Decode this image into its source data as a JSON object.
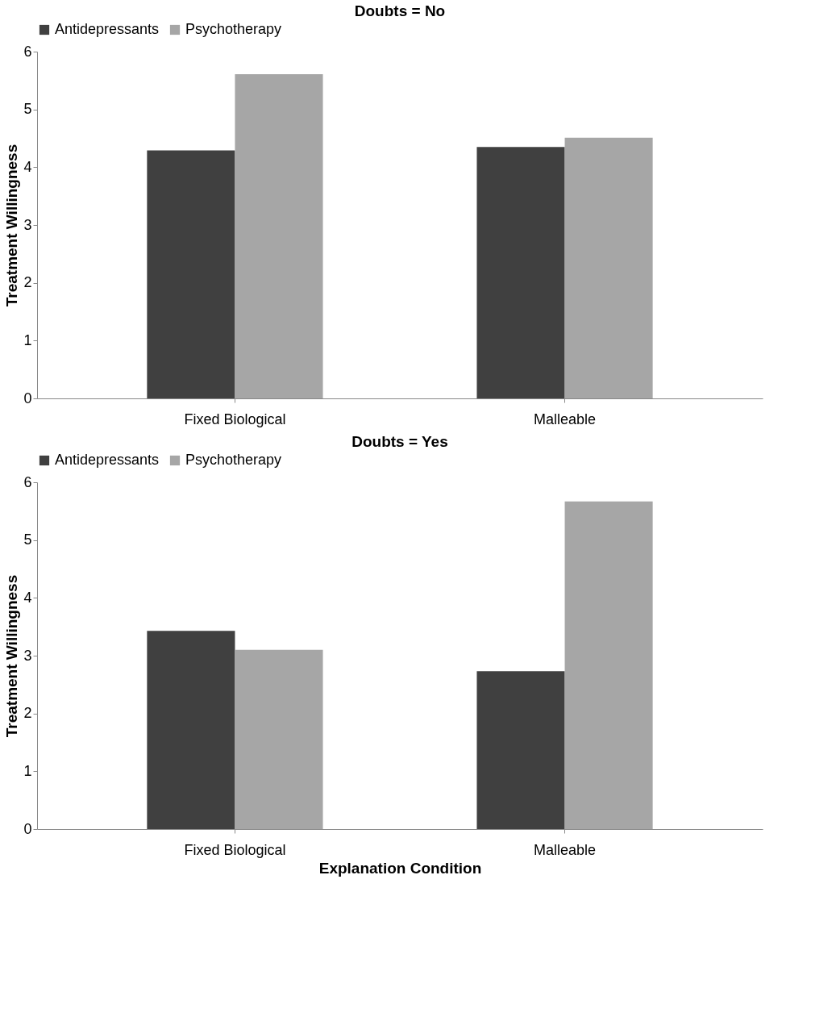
{
  "chart_data": [
    {
      "type": "bar",
      "title": "Doubts = No",
      "ylabel": "Treatment Willingness",
      "categories": [
        "Fixed Biological",
        "Malleable"
      ],
      "series": [
        {
          "name": "Antidepressants",
          "color": "#404040",
          "values": [
            4.29,
            4.35
          ]
        },
        {
          "name": "Psychotherapy",
          "color": "#a6a6a6",
          "values": [
            5.61,
            4.51
          ]
        }
      ],
      "ylim": [
        0,
        6
      ],
      "yticks": [
        0,
        1,
        2,
        3,
        4,
        5,
        6
      ],
      "grid": false,
      "legend": "top"
    },
    {
      "type": "bar",
      "title": "Doubts = Yes",
      "ylabel": "Treatment Willingness",
      "xlabel": "Explanation Condition",
      "categories": [
        "Fixed Biological",
        "Malleable"
      ],
      "series": [
        {
          "name": "Antidepressants",
          "color": "#404040",
          "values": [
            3.43,
            2.73
          ]
        },
        {
          "name": "Psychotherapy",
          "color": "#a6a6a6",
          "values": [
            3.1,
            5.67
          ]
        }
      ],
      "ylim": [
        0,
        6
      ],
      "yticks": [
        0,
        1,
        2,
        3,
        4,
        5,
        6
      ],
      "grid": false,
      "legend": "top"
    }
  ]
}
